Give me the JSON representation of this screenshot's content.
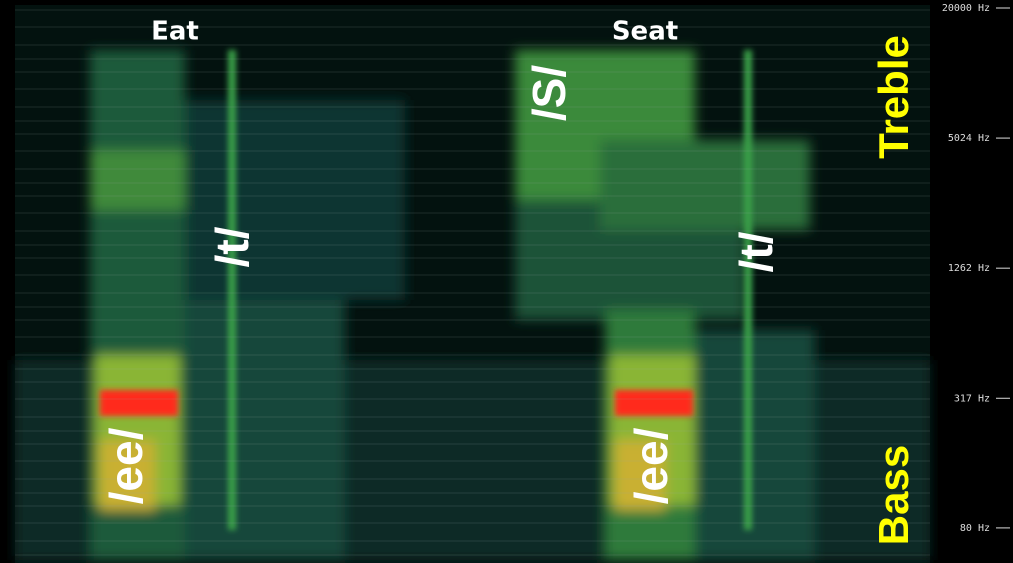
{
  "chart_data": {
    "type": "spectrogram",
    "ylim": [
      60,
      20000
    ],
    "log_scale": true,
    "yticks": [
      {
        "value": 20000,
        "label": "20000 Hz"
      },
      {
        "value": 5024,
        "label": "5024 Hz"
      },
      {
        "value": 1262,
        "label": "1262 Hz"
      },
      {
        "value": 317,
        "label": "317 Hz"
      },
      {
        "value": 80,
        "label": "80 Hz"
      }
    ],
    "annotations": [
      "Eat",
      "Seat",
      "/ee/",
      "/t/",
      "/S/",
      "/ee/",
      "/t/",
      "Treble",
      "Bass"
    ]
  }
}
